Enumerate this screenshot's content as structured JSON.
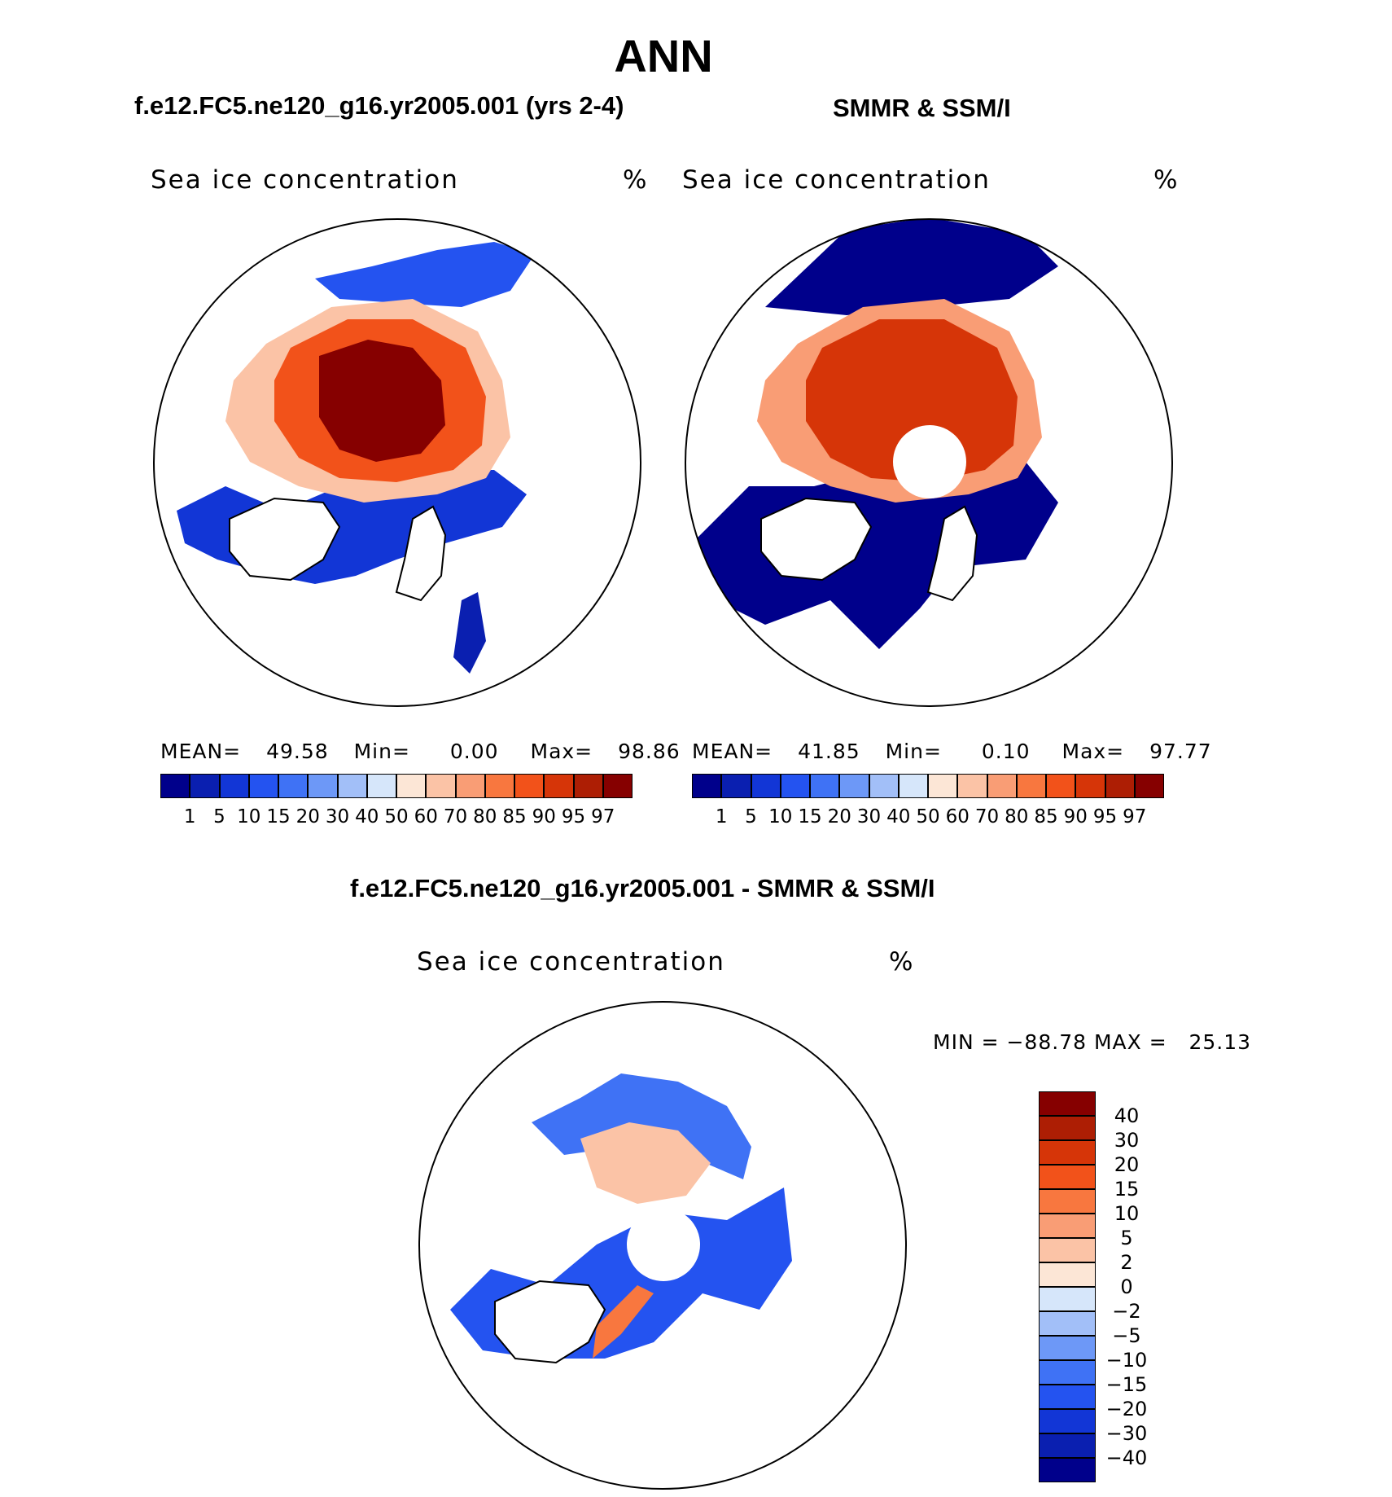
{
  "main_title": "ANN",
  "panels": [
    {
      "id": "model",
      "subtitle": "f.e12.FC5.ne120_g16.yr2005.001 (yrs 2-4)",
      "variable": "Sea ice concentration",
      "units": "%",
      "stats": {
        "mean_label": "MEAN=",
        "mean": "49.58",
        "min_label": "Min=",
        "min": "0.00",
        "max_label": "Max=",
        "max": "98.86"
      }
    },
    {
      "id": "obs",
      "subtitle": "SMMR & SSM/I",
      "variable": "Sea ice concentration",
      "units": "%",
      "stats": {
        "mean_label": "MEAN=",
        "mean": "41.85",
        "min_label": "Min=",
        "min": "0.10",
        "max_label": "Max=",
        "max": "97.77"
      }
    },
    {
      "id": "diff",
      "subtitle": "f.e12.FC5.ne120_g16.yr2005.001 - SMMR & SSM/I",
      "variable": "Sea ice concentration",
      "units": "%",
      "range_text": "MIN = −88.78 MAX =   25.13"
    }
  ],
  "colorbar_abs": {
    "labels": [
      "1",
      "5",
      "10",
      "15",
      "20",
      "30",
      "40",
      "50",
      "60",
      "70",
      "80",
      "85",
      "90",
      "95",
      "97"
    ],
    "colors": [
      "#00008b",
      "#0a1fb0",
      "#1236d6",
      "#2453f0",
      "#3f72f5",
      "#6d98f7",
      "#a2bff8",
      "#d6e6fa",
      "#fce6d6",
      "#fbc3a6",
      "#f99d75",
      "#f8773f",
      "#f2521a",
      "#d63508",
      "#ad1e04",
      "#860000"
    ]
  },
  "colorbar_diff": {
    "labels": [
      "40",
      "30",
      "20",
      "15",
      "10",
      "5",
      "2",
      "0",
      "−2",
      "−5",
      "−10",
      "−15",
      "−20",
      "−30",
      "−40"
    ],
    "colors": [
      "#860000",
      "#ad1e04",
      "#d63508",
      "#f2521a",
      "#f8773f",
      "#f99d75",
      "#fbc3a6",
      "#fce6d6",
      "#d6e6fa",
      "#a2bff8",
      "#6d98f7",
      "#3f72f5",
      "#2453f0",
      "#1236d6",
      "#0a1fb0",
      "#00008b"
    ]
  }
}
